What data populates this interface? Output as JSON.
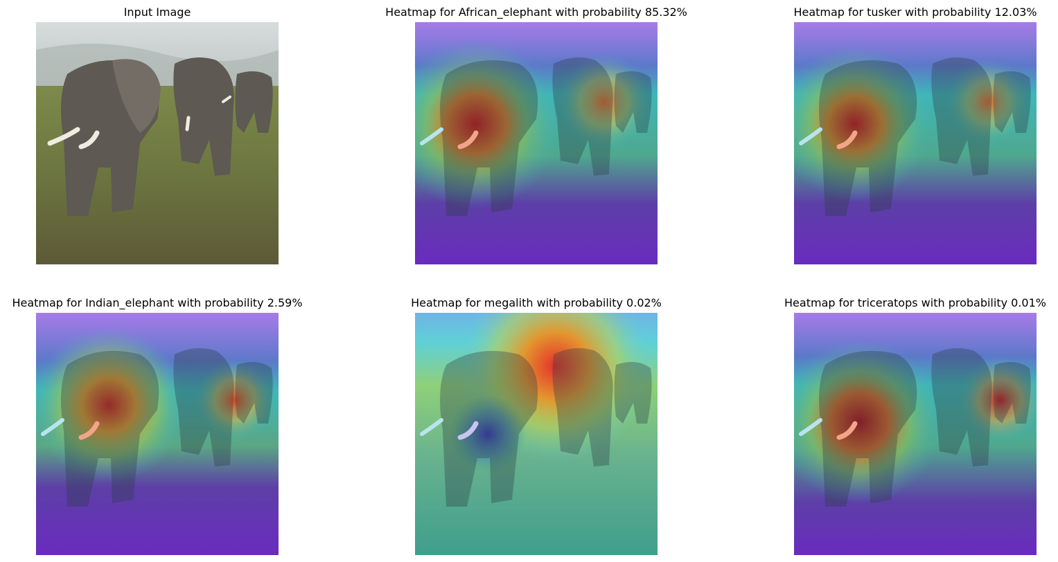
{
  "figure": {
    "panels": [
      {
        "title": "Input Image",
        "kind": "photo"
      },
      {
        "title": "Heatmap for African_elephant with probability 85.32%",
        "kind": "heatmap",
        "class": "African_elephant",
        "probability_pct": 85.32
      },
      {
        "title": "Heatmap for tusker with probability 12.03%",
        "kind": "heatmap",
        "class": "tusker",
        "probability_pct": 12.03
      },
      {
        "title": "Heatmap for Indian_elephant with probability 2.59%",
        "kind": "heatmap",
        "class": "Indian_elephant",
        "probability_pct": 2.59
      },
      {
        "title": "Heatmap for megalith with probability 0.02%",
        "kind": "heatmap",
        "class": "megalith",
        "probability_pct": 0.02
      },
      {
        "title": "Heatmap for triceratops with probability 0.01%",
        "kind": "heatmap",
        "class": "triceratops",
        "probability_pct": 0.01
      }
    ]
  },
  "colors": {
    "overlay_low": "#6a2bbf",
    "overlay_mid": "#2fb3a6",
    "overlay_high": "#d8141a",
    "sky": "#c9d0d2",
    "grass": "#6f7a3e",
    "elephant": "#5d5852"
  }
}
